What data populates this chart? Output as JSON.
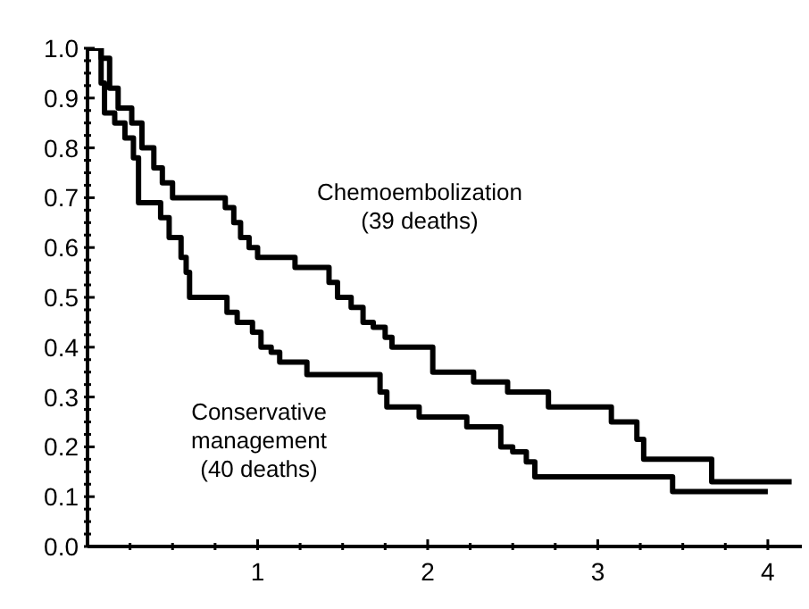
{
  "chart_data": {
    "type": "step",
    "xlim": [
      0,
      4.2
    ],
    "ylim": [
      0,
      1
    ],
    "xticks": [
      {
        "value": 0.25,
        "label": null
      },
      {
        "value": 0.5,
        "label": null
      },
      {
        "value": 0.75,
        "label": null
      },
      1,
      {
        "value": 1.25,
        "label": null
      },
      {
        "value": 1.5,
        "label": null
      },
      {
        "value": 1.75,
        "label": null
      },
      2,
      {
        "value": 2.25,
        "label": null
      },
      {
        "value": 2.5,
        "label": null
      },
      {
        "value": 2.75,
        "label": null
      },
      3,
      {
        "value": 3.25,
        "label": null
      },
      {
        "value": 3.5,
        "label": null
      },
      {
        "value": 3.75,
        "label": null
      },
      4
    ],
    "yticks": [
      {
        "value": 0,
        "label": "0.0"
      },
      {
        "value": 0.025,
        "label": null
      },
      {
        "value": 0.05,
        "label": null
      },
      {
        "value": 0.075,
        "label": null
      },
      {
        "value": 0.1,
        "label": "0.1"
      },
      {
        "value": 0.125,
        "label": null
      },
      {
        "value": 0.15,
        "label": null
      },
      {
        "value": 0.175,
        "label": null
      },
      {
        "value": 0.2,
        "label": "0.2"
      },
      {
        "value": 0.225,
        "label": null
      },
      {
        "value": 0.25,
        "label": null
      },
      {
        "value": 0.275,
        "label": null
      },
      {
        "value": 0.3,
        "label": "0.3"
      },
      {
        "value": 0.325,
        "label": null
      },
      {
        "value": 0.35,
        "label": null
      },
      {
        "value": 0.375,
        "label": null
      },
      {
        "value": 0.4,
        "label": "0.4"
      },
      {
        "value": 0.425,
        "label": null
      },
      {
        "value": 0.45,
        "label": null
      },
      {
        "value": 0.475,
        "label": null
      },
      {
        "value": 0.5,
        "label": "0.5"
      },
      {
        "value": 0.525,
        "label": null
      },
      {
        "value": 0.55,
        "label": null
      },
      {
        "value": 0.575,
        "label": null
      },
      {
        "value": 0.6,
        "label": "0.6"
      },
      {
        "value": 0.625,
        "label": null
      },
      {
        "value": 0.65,
        "label": null
      },
      {
        "value": 0.675,
        "label": null
      },
      {
        "value": 0.7,
        "label": "0.7"
      },
      {
        "value": 0.725,
        "label": null
      },
      {
        "value": 0.75,
        "label": null
      },
      {
        "value": 0.775,
        "label": null
      },
      {
        "value": 0.8,
        "label": "0.8"
      },
      {
        "value": 0.825,
        "label": null
      },
      {
        "value": 0.85,
        "label": null
      },
      {
        "value": 0.875,
        "label": null
      },
      {
        "value": 0.9,
        "label": "0.9"
      },
      {
        "value": 0.925,
        "label": null
      },
      {
        "value": 0.95,
        "label": null
      },
      {
        "value": 0.975,
        "label": null
      },
      {
        "value": 1,
        "label": "1.0"
      }
    ],
    "series": [
      {
        "name": "Chemoembolization\n(39 deaths)",
        "color": "#000000",
        "x": [
          0,
          0.08,
          0.13,
          0.18,
          0.26,
          0.32,
          0.39,
          0.44,
          0.5,
          0.81,
          0.86,
          0.9,
          0.95,
          1.0,
          1.22,
          1.42,
          1.47,
          1.55,
          1.62,
          1.68,
          1.75,
          1.79,
          2.03,
          2.27,
          2.47,
          2.71,
          3.08,
          3.23,
          3.27,
          3.67,
          4.14
        ],
        "values": [
          1.0,
          0.98,
          0.92,
          0.88,
          0.85,
          0.8,
          0.76,
          0.73,
          0.7,
          0.68,
          0.65,
          0.62,
          0.6,
          0.58,
          0.56,
          0.53,
          0.5,
          0.48,
          0.45,
          0.44,
          0.42,
          0.4,
          0.35,
          0.33,
          0.31,
          0.28,
          0.25,
          0.215,
          0.175,
          0.13,
          0.13
        ]
      },
      {
        "name": "Conservative\nmanagement\n(40 deaths)",
        "color": "#000000",
        "x": [
          0,
          0.08,
          0.1,
          0.16,
          0.22,
          0.27,
          0.3,
          0.43,
          0.48,
          0.55,
          0.58,
          0.6,
          0.82,
          0.88,
          0.97,
          1.02,
          1.08,
          1.13,
          1.29,
          1.72,
          1.76,
          1.95,
          2.23,
          2.43,
          2.5,
          2.58,
          2.63,
          3.44,
          4.0
        ],
        "values": [
          1.0,
          0.93,
          0.87,
          0.85,
          0.82,
          0.78,
          0.69,
          0.66,
          0.62,
          0.58,
          0.55,
          0.5,
          0.47,
          0.45,
          0.43,
          0.4,
          0.39,
          0.37,
          0.345,
          0.31,
          0.28,
          0.26,
          0.24,
          0.2,
          0.19,
          0.17,
          0.14,
          0.11,
          0.11
        ]
      }
    ]
  }
}
